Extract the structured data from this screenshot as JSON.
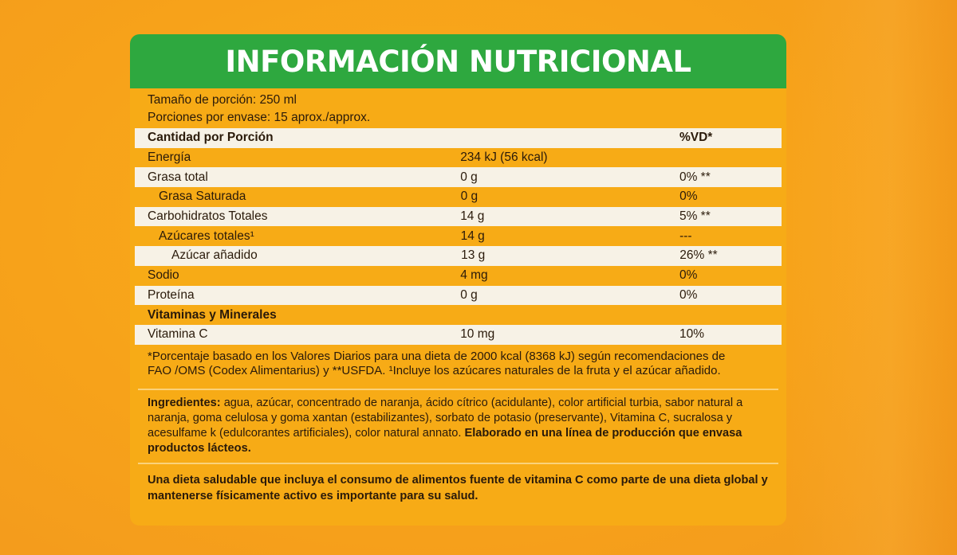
{
  "header": {
    "title": "INFORMACIÓN NUTRICIONAL"
  },
  "serving": {
    "size": "Tamaño de porción: 250 ml",
    "per_container": "Porciones por envase: 15 aprox./approx."
  },
  "table": {
    "head": {
      "name": "Cantidad por Porción",
      "amount": "",
      "vd": "%VD*"
    },
    "rows": [
      {
        "name": "Energía",
        "amount": "234 kJ (56 kcal)",
        "vd": ""
      },
      {
        "name": "Grasa total",
        "amount": "0 g",
        "vd": "0% **"
      },
      {
        "name": "Grasa Saturada",
        "amount": "0 g",
        "vd": "0%"
      },
      {
        "name": "Carbohidratos Totales",
        "amount": "14 g",
        "vd": "5% **"
      },
      {
        "name": "Azúcares totales¹",
        "amount": "14 g",
        "vd": "---"
      },
      {
        "name": "Azúcar añadido",
        "amount": "13 g",
        "vd": "26% **"
      },
      {
        "name": "Sodio",
        "amount": "4 mg",
        "vd": "0%"
      },
      {
        "name": "Proteína",
        "amount": "0 g",
        "vd": "0%"
      },
      {
        "name": "Vitaminas y Minerales",
        "amount": "",
        "vd": ""
      },
      {
        "name": "Vitamina C",
        "amount": "10 mg",
        "vd": "10%"
      }
    ]
  },
  "footnote": {
    "line1": "*Porcentaje basado en los Valores Diarios para una dieta de 2000 kcal (8368 kJ) según recomendaciones de",
    "line2": "FAO /OMS (Codex Alimentarius) y **USFDA. ¹Incluye los azúcares naturales de la fruta y el azúcar añadido."
  },
  "ingredients": {
    "label": "Ingredientes:",
    "text": " agua, azúcar, concentrado de naranja, ácido cítrico (acidulante), color artificial turbia, sabor natural a naranja, goma celulosa y goma xantan (estabilizantes), sorbato de potasio (preservante), Vitamina C, sucralosa y acesulfame k (edulcorantes artificiales), color natural annato.",
    "note": " Elaborado en una línea de producción que envasa productos lácteos."
  },
  "health": {
    "text": "Una dieta saludable que incluya el consumo de alimentos fuente de vitamina C como parte de una dieta global y mantenerse físicamente activo es importante para su salud."
  }
}
